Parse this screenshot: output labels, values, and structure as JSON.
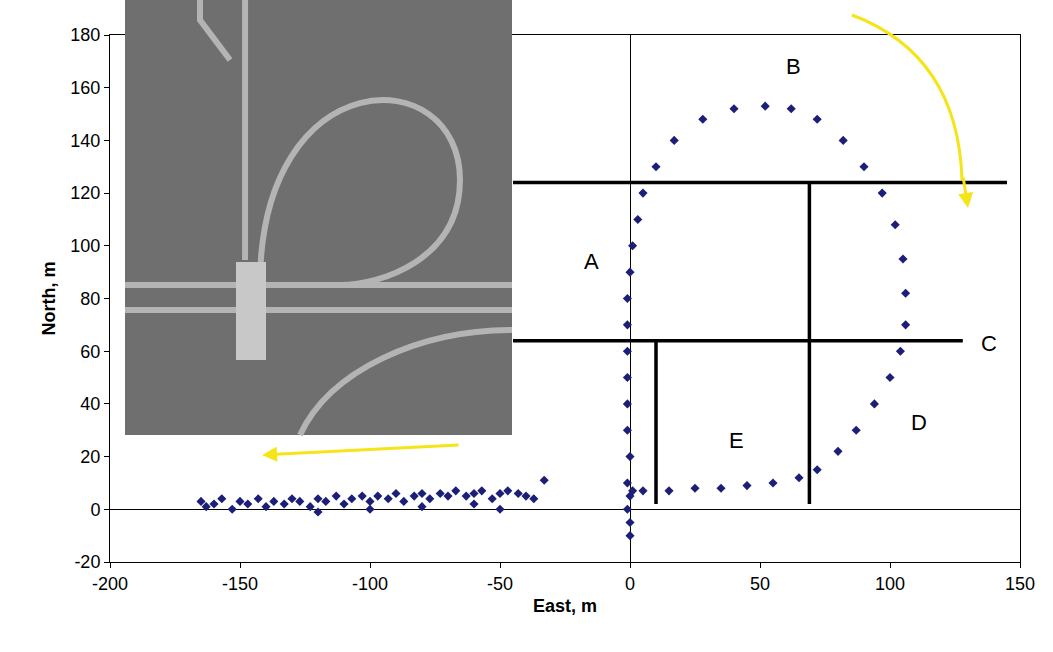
{
  "chart_data": {
    "type": "scatter",
    "xlabel": "East, m",
    "ylabel": "North, m",
    "color": "#1c1f78",
    "marker": "diamond",
    "grid": false,
    "xlim": [
      -200,
      150
    ],
    "xticks": [
      -200,
      -150,
      -100,
      -50,
      0,
      50,
      100,
      150
    ],
    "ylim": [
      -20,
      180
    ],
    "yticks": [
      -20,
      0,
      20,
      40,
      60,
      80,
      100,
      120,
      140,
      160,
      180
    ],
    "x": [
      -165,
      -163,
      -160,
      -157,
      -153,
      -150,
      -147,
      -143,
      -140,
      -137,
      -133,
      -130,
      -127,
      -123,
      -120,
      -117,
      -113,
      -110,
      -107,
      -103,
      -100,
      -97,
      -93,
      -90,
      -87,
      -83,
      -80,
      -77,
      -73,
      -70,
      -67,
      -63,
      -60,
      -57,
      -53,
      -50,
      -47,
      -43,
      -40,
      -37,
      -33,
      -120,
      -100,
      -80,
      -60,
      -50,
      0,
      0,
      -1,
      0,
      -1,
      0,
      -1,
      -1,
      -1,
      -1,
      -1,
      -1,
      0,
      1,
      3,
      5,
      10,
      17,
      28,
      40,
      52,
      62,
      72,
      82,
      90,
      97,
      102,
      105,
      106,
      106,
      104,
      100,
      94,
      87,
      80,
      72,
      65,
      55,
      45,
      35,
      25,
      15,
      5,
      1
    ],
    "values": [
      3,
      1,
      2,
      4,
      0,
      3,
      2,
      4,
      1,
      3,
      2,
      4,
      3,
      1,
      4,
      3,
      5,
      2,
      4,
      5,
      3,
      5,
      4,
      6,
      3,
      5,
      6,
      4,
      6,
      5,
      7,
      5,
      6,
      7,
      4,
      6,
      7,
      6,
      5,
      4,
      11,
      -1,
      0,
      1,
      2,
      0,
      -10,
      -5,
      0,
      5,
      10,
      20,
      30,
      40,
      50,
      60,
      70,
      80,
      90,
      100,
      110,
      120,
      130,
      140,
      148,
      152,
      153,
      152,
      148,
      140,
      130,
      120,
      108,
      95,
      82,
      70,
      60,
      50,
      40,
      30,
      22,
      15,
      12,
      10,
      9,
      8,
      8,
      7,
      7,
      7
    ],
    "lines": [
      {
        "x": [
          -45,
          145
        ],
        "y": [
          124,
          124
        ]
      },
      {
        "x": [
          -45,
          128
        ],
        "y": [
          64,
          64
        ]
      },
      {
        "x": [
          69,
          69
        ],
        "y": [
          124,
          2
        ]
      },
      {
        "x": [
          10,
          10
        ],
        "y": [
          64,
          2
        ]
      }
    ],
    "annotations": [
      {
        "text": "A",
        "x": -15,
        "y": 94
      },
      {
        "text": "B",
        "x": 63,
        "y": 168
      },
      {
        "text": "C",
        "x": 138,
        "y": 63
      },
      {
        "text": "D",
        "x": 111,
        "y": 33
      },
      {
        "text": "E",
        "x": 41,
        "y": 26
      }
    ]
  }
}
